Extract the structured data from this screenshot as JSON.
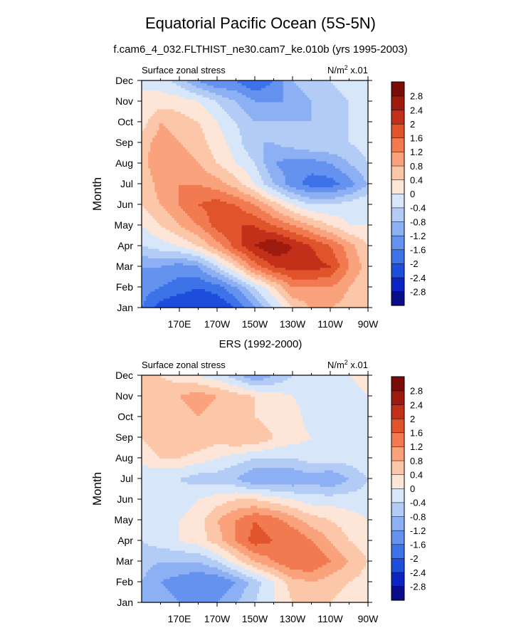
{
  "title": "Equatorial Pacific Ocean (5S-5N)",
  "subtitle": "f.cam6_4_032.FLTHIST_ne30.cam7_ke.010b (yrs 1995-2003)",
  "panel2_title": "ERS (1992-2000)",
  "colors": {
    "levels": [
      "#0a0d8a",
      "#0b24c2",
      "#1f4ddc",
      "#3d72e8",
      "#6592ef",
      "#8cb0f3",
      "#b3ccf6",
      "#d8e6f9",
      "#fde6d7",
      "#fcc7a9",
      "#f9a27c",
      "#f27a51",
      "#e0542c",
      "#c3301a",
      "#9e1a0f",
      "#7a0c08"
    ],
    "axis": "#000000"
  },
  "chart_data": [
    {
      "type": "heatmap",
      "title": "Surface zonal stress",
      "units": "N/m² x.01",
      "ylabel": "Month",
      "xlabel": "",
      "x_ticks": [
        "170E",
        "170W",
        "150W",
        "130W",
        "110W",
        "90W"
      ],
      "y_ticks": [
        "Jan",
        "Feb",
        "Mar",
        "Apr",
        "May",
        "Jun",
        "Jul",
        "Aug",
        "Sep",
        "Oct",
        "Nov",
        "Dec"
      ],
      "colorbar_levels": [
        -2.8,
        -2.4,
        -2,
        -1.6,
        -1.2,
        -0.8,
        -0.4,
        0,
        0.4,
        0.8,
        1.2,
        1.6,
        2,
        2.4,
        2.8
      ],
      "x": [
        "150E",
        "160E",
        "170E",
        "180",
        "170W",
        "160W",
        "150W",
        "140W",
        "130W",
        "120W",
        "110W",
        "100W",
        "90W"
      ],
      "y": [
        "Jan",
        "Feb",
        "Mar",
        "Apr",
        "May",
        "Jun",
        "Jul",
        "Aug",
        "Sep",
        "Oct",
        "Nov",
        "Dec"
      ],
      "z": [
        [
          -1.6,
          -2.2,
          -2.4,
          -2.4,
          -2.4,
          -2.0,
          -1.2,
          -0.4,
          0.4,
          0.8,
          0.8,
          0.6,
          0.4
        ],
        [
          -1.4,
          -1.6,
          -1.8,
          -2.0,
          -1.8,
          -1.2,
          -0.4,
          0.4,
          1.2,
          1.2,
          1.2,
          0.8,
          0.4
        ],
        [
          -1.2,
          -1.2,
          -1.4,
          -1.2,
          -0.4,
          0.4,
          1.4,
          2.0,
          2.2,
          2.2,
          2.0,
          1.2,
          0.6
        ],
        [
          -0.4,
          -0.2,
          0.0,
          0.4,
          1.0,
          1.8,
          2.4,
          2.8,
          2.4,
          2.0,
          1.6,
          1.0,
          0.4
        ],
        [
          0.0,
          0.4,
          0.8,
          1.2,
          1.8,
          2.0,
          2.0,
          1.6,
          1.2,
          0.8,
          0.4,
          0.0,
          0.0
        ],
        [
          0.4,
          0.8,
          1.2,
          1.6,
          1.8,
          1.6,
          1.2,
          0.6,
          0.0,
          -0.4,
          -0.4,
          -0.2,
          0.0
        ],
        [
          0.4,
          1.0,
          1.2,
          1.2,
          1.0,
          0.6,
          0.0,
          -0.8,
          -1.4,
          -1.8,
          -1.8,
          -1.4,
          -0.8
        ],
        [
          0.6,
          1.2,
          1.0,
          0.8,
          0.4,
          0.0,
          -0.4,
          -1.2,
          -1.4,
          -1.4,
          -1.2,
          -0.8,
          -0.4
        ],
        [
          0.6,
          1.0,
          0.8,
          0.6,
          0.2,
          -0.2,
          -0.8,
          -0.8,
          -0.6,
          -0.4,
          -0.4,
          -0.4,
          -0.2
        ],
        [
          0.2,
          0.8,
          0.6,
          0.4,
          0.0,
          -0.4,
          -0.8,
          -0.8,
          -0.8,
          -0.8,
          -0.6,
          -0.4,
          -0.2
        ],
        [
          0.0,
          0.2,
          0.2,
          0.0,
          -0.4,
          -0.8,
          -1.2,
          -1.2,
          -1.2,
          -0.8,
          -0.6,
          -0.4,
          -0.2
        ],
        [
          0.0,
          -0.2,
          -0.6,
          -1.2,
          -1.6,
          -1.6,
          -2.0,
          -1.6,
          -0.8,
          -0.4,
          -0.4,
          -0.2,
          0.0
        ]
      ]
    },
    {
      "type": "heatmap",
      "title": "Surface zonal stress",
      "units": "N/m² x.01",
      "ylabel": "Month",
      "xlabel": "",
      "x_ticks": [
        "170E",
        "170W",
        "150W",
        "130W",
        "110W",
        "90W"
      ],
      "y_ticks": [
        "Jan",
        "Feb",
        "Mar",
        "Apr",
        "May",
        "Jun",
        "Jul",
        "Aug",
        "Sep",
        "Oct",
        "Nov",
        "Dec"
      ],
      "colorbar_levels": [
        -2.8,
        -2.4,
        -2,
        -1.6,
        -1.2,
        -0.8,
        -0.4,
        0,
        0.4,
        0.8,
        1.2,
        1.6,
        2,
        2.4,
        2.8
      ],
      "x": [
        "150E",
        "160E",
        "170E",
        "180",
        "170W",
        "160W",
        "150W",
        "140W",
        "130W",
        "120W",
        "110W",
        "100W",
        "90W"
      ],
      "y": [
        "Jan",
        "Feb",
        "Mar",
        "Apr",
        "May",
        "Jun",
        "Jul",
        "Aug",
        "Sep",
        "Oct",
        "Nov",
        "Dec"
      ],
      "z": [
        [
          -0.8,
          -1.0,
          -1.2,
          -1.4,
          -1.2,
          -0.8,
          -0.4,
          0.0,
          0.4,
          0.4,
          0.4,
          0.2,
          0.0
        ],
        [
          -0.8,
          -1.2,
          -1.4,
          -1.6,
          -1.6,
          -1.2,
          -0.6,
          0.0,
          0.6,
          0.8,
          0.6,
          0.4,
          0.2
        ],
        [
          -0.6,
          -0.8,
          -0.8,
          -0.8,
          -0.4,
          0.2,
          0.8,
          1.2,
          1.6,
          1.6,
          1.2,
          0.8,
          0.4
        ],
        [
          -0.4,
          -0.2,
          0.0,
          0.2,
          0.6,
          1.2,
          1.8,
          1.6,
          1.6,
          1.2,
          0.8,
          0.4,
          0.2
        ],
        [
          -0.2,
          0.0,
          0.0,
          0.2,
          0.8,
          1.2,
          1.6,
          1.4,
          1.0,
          0.6,
          0.4,
          0.2,
          0.0
        ],
        [
          -0.4,
          -0.4,
          -0.2,
          0.0,
          0.2,
          0.4,
          0.4,
          0.2,
          0.0,
          -0.2,
          -0.2,
          -0.2,
          -0.2
        ],
        [
          -0.4,
          -0.4,
          -0.4,
          -0.6,
          -0.6,
          -0.8,
          -1.2,
          -1.2,
          -1.2,
          -1.0,
          -1.2,
          -0.8,
          -0.4
        ],
        [
          0.2,
          0.4,
          0.4,
          0.2,
          0.0,
          -0.2,
          -0.4,
          -0.4,
          -0.4,
          -0.2,
          -0.2,
          -0.2,
          0.0
        ],
        [
          0.4,
          0.6,
          0.8,
          0.8,
          0.6,
          0.8,
          0.8,
          0.4,
          0.2,
          0.0,
          -0.2,
          -0.2,
          0.0
        ],
        [
          0.4,
          0.6,
          0.6,
          0.8,
          0.6,
          0.4,
          0.4,
          0.2,
          0.2,
          -0.2,
          -0.4,
          -0.2,
          0.0
        ],
        [
          0.4,
          0.6,
          0.8,
          1.0,
          0.8,
          0.6,
          0.4,
          0.2,
          0.0,
          -0.2,
          -0.2,
          -0.2,
          0.0
        ],
        [
          0.4,
          0.4,
          0.2,
          0.0,
          -0.2,
          -0.6,
          -1.2,
          -0.8,
          -0.4,
          -0.2,
          -0.2,
          0.0,
          0.2
        ]
      ]
    }
  ]
}
